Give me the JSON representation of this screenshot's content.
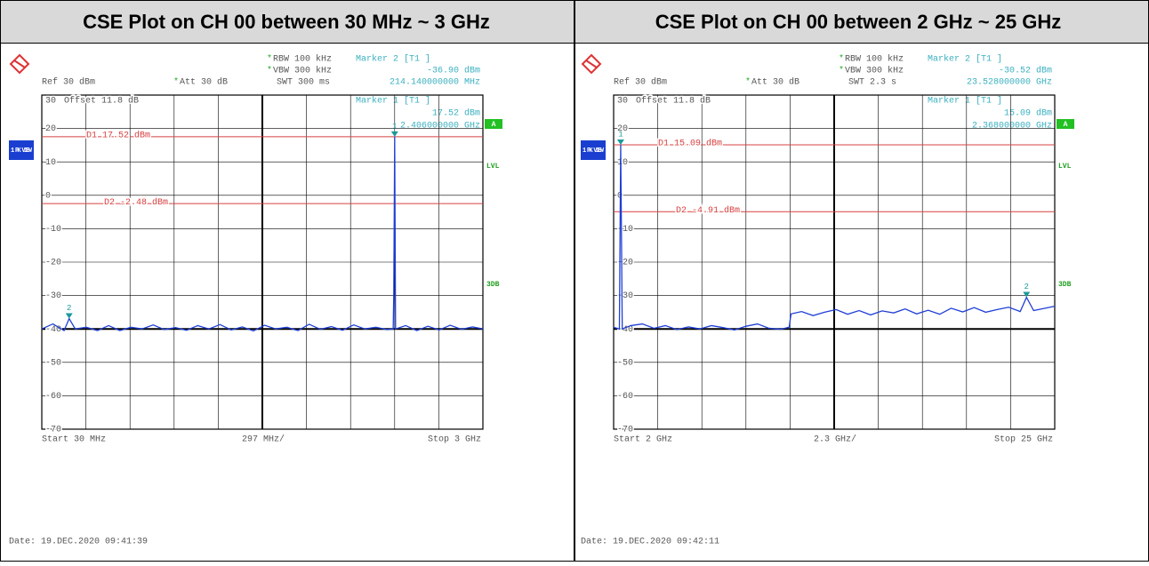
{
  "chart_data": [
    {
      "type": "line",
      "title": "CSE Plot on CH 00 between 30 MHz ~ 3 GHz",
      "ref": "Ref  30 dBm",
      "att": "Att  30 dB",
      "rbw": "RBW 100 kHz",
      "vbw": "VBW 300 kHz",
      "swt": "SWT 300 ms",
      "offset": "Offset  11.8 dB",
      "trace_label": "1 PK VIEW",
      "a_label": "A",
      "lvl_label": "LVL",
      "db_label": "3DB",
      "start_label": "Start 30 MHz",
      "span_label": "297 MHz/",
      "stop_label": "Stop 3 GHz",
      "date": "Date: 19.DEC.2020  09:41:39",
      "xlim": [
        30,
        3000
      ],
      "ylim": [
        -70,
        30
      ],
      "yticks": [
        30,
        20,
        10,
        0,
        -10,
        -20,
        -30,
        -40,
        -50,
        -60,
        -70
      ],
      "color": "#1f3fd6",
      "display_lines": [
        {
          "label": "D1 17.52 dBm",
          "value": 17.52
        },
        {
          "label": "D2 -2.48 dBm",
          "value": -2.48
        }
      ],
      "markers": [
        {
          "name": "Marker 2 [T1 ]",
          "number": "2",
          "x": 214.14,
          "y": -36.9,
          "value_label": "-36.90 dBm",
          "x_label": "214.140000000 MHz"
        },
        {
          "name": "Marker 1 [T1 ]",
          "number": "1",
          "x": 2406,
          "y": 17.52,
          "value_label": "17.52 dBm",
          "x_label": "2.406000000 GHz"
        }
      ],
      "x": [
        30,
        105,
        180,
        214.14,
        255,
        330,
        405,
        480,
        555,
        630,
        705,
        780,
        855,
        930,
        1005,
        1080,
        1155,
        1230,
        1305,
        1380,
        1455,
        1530,
        1605,
        1680,
        1755,
        1830,
        1905,
        1980,
        2055,
        2130,
        2205,
        2280,
        2355,
        2396,
        2400,
        2406,
        2412,
        2480,
        2555,
        2630,
        2705,
        2780,
        2855,
        2930,
        3000
      ],
      "values": [
        -40,
        -38.5,
        -40.5,
        -36.9,
        -40,
        -39.5,
        -40.5,
        -39,
        -40.5,
        -39.5,
        -40,
        -38.8,
        -40.2,
        -39.6,
        -40.4,
        -39,
        -40,
        -38.7,
        -40.3,
        -39.4,
        -40.6,
        -38.9,
        -40,
        -39.5,
        -40.5,
        -38.6,
        -40.1,
        -39.3,
        -40.4,
        -38.8,
        -40,
        -39.5,
        -40.2,
        -40,
        -29,
        17.52,
        -40,
        -39,
        -40.5,
        -39.2,
        -40.3,
        -38.9,
        -40.1,
        -39.4,
        -40
      ]
    },
    {
      "type": "line",
      "title": "CSE Plot on CH 00 between 2 GHz ~ 25 GHz",
      "ref": "Ref  30 dBm",
      "att": "Att  30 dB",
      "rbw": "RBW 100 kHz",
      "vbw": "VBW 300 kHz",
      "swt": "SWT 2.3 s",
      "offset": "Offset  11.8 dB",
      "trace_label": "1 PK VIEW",
      "a_label": "A",
      "lvl_label": "LVL",
      "db_label": "3DB",
      "start_label": "Start 2 GHz",
      "span_label": "2.3 GHz/",
      "stop_label": "Stop 25 GHz",
      "date": "Date: 19.DEC.2020  09:42:11",
      "xlim": [
        2,
        25
      ],
      "ylim": [
        -70,
        30
      ],
      "yticks": [
        30,
        20,
        10,
        0,
        -10,
        -20,
        -30,
        -40,
        -50,
        -60,
        -70
      ],
      "color": "#1f3fd6",
      "display_lines": [
        {
          "label": "D1 15.09 dBm",
          "value": 15.09
        },
        {
          "label": "D2 -4.91 dBm",
          "value": -4.91
        }
      ],
      "markers": [
        {
          "name": "Marker 2 [T1 ]",
          "number": "2",
          "x": 23.528,
          "y": -30.52,
          "value_label": "-30.52 dBm",
          "x_label": "23.528000000 GHz"
        },
        {
          "name": "Marker 1 [T1 ]",
          "number": "1",
          "x": 2.368,
          "y": 15.09,
          "value_label": "15.09 dBm",
          "x_label": "2.368000000 GHz"
        }
      ],
      "x": [
        2,
        2.3,
        2.368,
        2.45,
        2.9,
        3.5,
        4.1,
        4.7,
        5.3,
        5.9,
        6.5,
        7.1,
        7.7,
        8.3,
        8.9,
        9.5,
        10.1,
        10.7,
        11.15,
        11.25,
        11.8,
        12.4,
        13,
        13.6,
        14.2,
        14.8,
        15.4,
        16,
        16.6,
        17.2,
        17.8,
        18.4,
        19,
        19.6,
        20.2,
        20.8,
        21.4,
        22,
        22.6,
        23.2,
        23.528,
        23.9,
        24.5,
        25
      ],
      "values": [
        -39.5,
        -40,
        15.09,
        -40,
        -39,
        -38.5,
        -39.8,
        -39,
        -40.2,
        -39.4,
        -40,
        -39,
        -39.6,
        -40.3,
        -39.2,
        -38.5,
        -39.8,
        -40.1,
        -39.5,
        -35.5,
        -34.8,
        -36,
        -35,
        -34.2,
        -35.6,
        -34.5,
        -35.8,
        -34.6,
        -35.2,
        -34,
        -35.5,
        -34.4,
        -35.6,
        -33.8,
        -34.9,
        -33.6,
        -35,
        -34.2,
        -33.5,
        -34.8,
        -30.52,
        -34.5,
        -33.8,
        -33.2
      ]
    }
  ]
}
